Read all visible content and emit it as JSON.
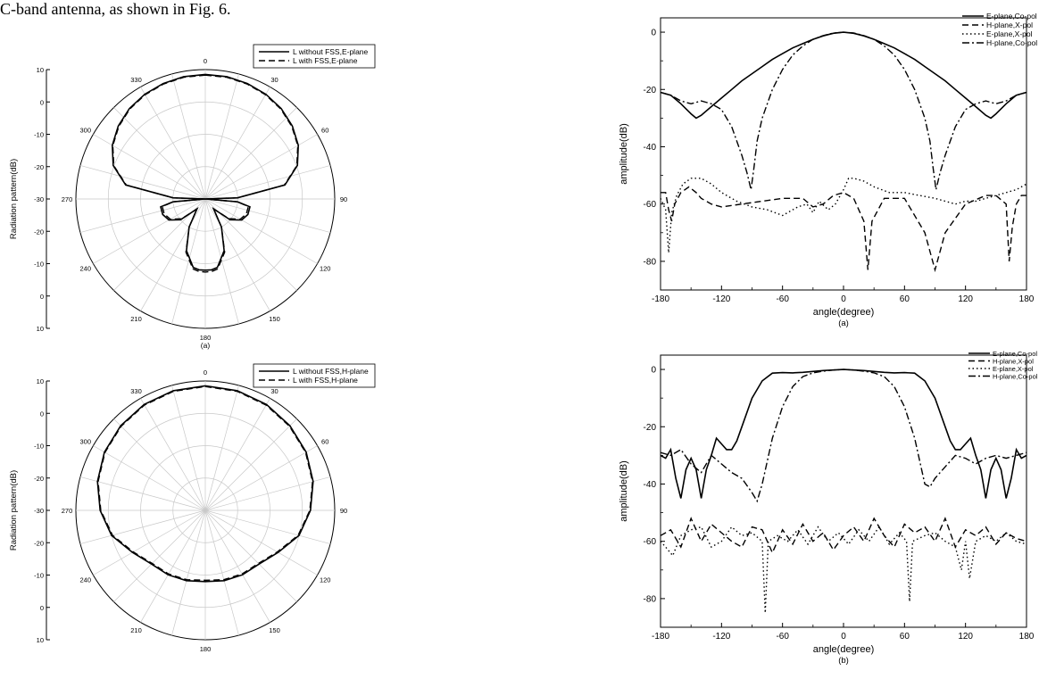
{
  "intro_text": "C-band antenna, as shown in Fig. 6.",
  "chart_data": [
    {
      "type": "polar",
      "panel": "(a)",
      "ylabel": "Radiation pattern(dB)",
      "angle_ticks": [
        "0",
        "30",
        "60",
        "90",
        "120",
        "150",
        "180",
        "210",
        "240",
        "270",
        "300",
        "330"
      ],
      "radial_ticks": [
        "10",
        "0",
        "-10",
        "-20",
        "-30",
        "-20",
        "-10",
        "0",
        "10"
      ],
      "radial_range": [
        -30,
        10
      ],
      "legend_position": "top-right",
      "series": [
        {
          "name": "L without FSS,E-plane",
          "style": "solid",
          "angles": [
            0,
            10,
            20,
            30,
            40,
            50,
            60,
            70,
            80,
            88,
            90,
            95,
            100,
            110,
            120,
            130,
            140,
            150,
            160,
            170,
            175,
            180,
            185,
            190,
            200,
            210,
            220,
            230,
            240,
            250,
            260,
            265,
            270,
            272,
            280,
            290,
            300,
            310,
            320,
            330,
            340,
            350,
            360
          ],
          "values": [
            8.5,
            8.4,
            8,
            7.4,
            6.5,
            5.1,
            3.2,
            0.3,
            -5,
            -20,
            -30,
            -20,
            -16,
            -16,
            -17,
            -20,
            -26,
            -20,
            -13,
            -8.5,
            -8,
            -8,
            -8,
            -8.5,
            -13,
            -20,
            -26,
            -20,
            -17,
            -16,
            -16,
            -20,
            -30,
            -20,
            -5,
            0.3,
            3.2,
            5.1,
            6.5,
            7.4,
            8,
            8.4,
            8.5
          ]
        },
        {
          "name": "L with FSS,E-plane",
          "style": "dashed",
          "angles": [
            0,
            10,
            20,
            30,
            40,
            50,
            60,
            70,
            80,
            88,
            90,
            95,
            100,
            110,
            120,
            130,
            140,
            150,
            160,
            170,
            175,
            180,
            185,
            190,
            200,
            210,
            220,
            230,
            240,
            250,
            260,
            265,
            270,
            272,
            280,
            290,
            300,
            310,
            320,
            330,
            340,
            350,
            360
          ],
          "values": [
            8.3,
            8.2,
            7.8,
            7.2,
            6.3,
            4.9,
            3,
            0.1,
            -5.2,
            -20,
            -30,
            -20,
            -16.5,
            -16.5,
            -17.5,
            -20.5,
            -26,
            -20,
            -12.5,
            -8,
            -7.5,
            -7.4,
            -7.5,
            -8,
            -12.5,
            -20,
            -26,
            -20.5,
            -17.5,
            -16.5,
            -16.5,
            -20,
            -30,
            -20,
            -5.2,
            0.1,
            3,
            4.9,
            6.3,
            7.2,
            7.8,
            8.2,
            8.3
          ]
        }
      ]
    },
    {
      "type": "polar",
      "panel": "",
      "ylabel": "Radiation pattern(dB)",
      "angle_ticks": [
        "0",
        "30",
        "60",
        "90",
        "120",
        "150",
        "180",
        "210",
        "240",
        "270",
        "300",
        "330"
      ],
      "radial_ticks": [
        "10",
        "0",
        "-10",
        "-20",
        "-30",
        "-20",
        "-10",
        "0",
        "10"
      ],
      "radial_range": [
        -30,
        10
      ],
      "legend_position": "top-right",
      "series": [
        {
          "name": "L without FSS,H-plane",
          "style": "solid",
          "angles": [
            0,
            15,
            30,
            45,
            60,
            75,
            90,
            105,
            120,
            135,
            150,
            165,
            180,
            195,
            210,
            225,
            240,
            255,
            270,
            285,
            300,
            315,
            330,
            345,
            360
          ],
          "values": [
            8.5,
            8.3,
            7.8,
            7,
            6,
            4.5,
            2.5,
            0,
            -4,
            -6.5,
            -7,
            -7.5,
            -8,
            -7.5,
            -7,
            -6.5,
            -4,
            0,
            2.5,
            4.5,
            6,
            7,
            7.8,
            8.3,
            8.5
          ]
        },
        {
          "name": "L with FSS,H-plane",
          "style": "dashed",
          "angles": [
            0,
            15,
            30,
            45,
            60,
            75,
            90,
            105,
            120,
            135,
            150,
            165,
            180,
            195,
            210,
            225,
            240,
            255,
            270,
            285,
            300,
            315,
            330,
            345,
            360
          ],
          "values": [
            8.3,
            8.1,
            7.6,
            6.8,
            5.8,
            4.3,
            2.3,
            -0.3,
            -4.3,
            -6.8,
            -7.3,
            -7.8,
            -8.4,
            -7.8,
            -7.3,
            -6.8,
            -4.3,
            -0.3,
            2.3,
            4.3,
            5.8,
            6.8,
            7.6,
            8.1,
            8.3
          ]
        }
      ]
    },
    {
      "type": "line",
      "panel": "(a)",
      "xlabel": "angle(degree)",
      "ylabel": "amplitude(dB)",
      "xlim": [
        -180,
        180
      ],
      "ylim": [
        -90,
        5
      ],
      "xticks": [
        -180,
        -120,
        -60,
        0,
        60,
        120,
        180
      ],
      "yticks": [
        0,
        -20,
        -40,
        -60,
        -80
      ],
      "legend_position": "top-right",
      "series": [
        {
          "name": "E-plane,Co-pol",
          "style": "solid",
          "x": [
            -180,
            -170,
            -160,
            -150,
            -145,
            -140,
            -130,
            -120,
            -110,
            -100,
            -90,
            -80,
            -70,
            -60,
            -50,
            -40,
            -30,
            -20,
            -10,
            0,
            10,
            20,
            30,
            40,
            50,
            60,
            70,
            80,
            90,
            100,
            110,
            120,
            130,
            140,
            145,
            150,
            160,
            170,
            180
          ],
          "y": [
            -21,
            -22,
            -25,
            -28.5,
            -30,
            -29,
            -26,
            -23,
            -20,
            -17,
            -14.5,
            -12,
            -9.5,
            -7.5,
            -5.5,
            -4,
            -2.5,
            -1.3,
            -0.4,
            0,
            -0.4,
            -1.3,
            -2.5,
            -4,
            -5.5,
            -7.5,
            -9.5,
            -12,
            -14.5,
            -17,
            -20,
            -23,
            -26,
            -29,
            -30,
            -28.5,
            -25,
            -22,
            -21
          ]
        },
        {
          "name": "H-plane,X-pol",
          "style": "dashed",
          "x": [
            -180,
            -175,
            -172,
            -169,
            -166,
            -160,
            -152,
            -145,
            -140,
            -130,
            -120,
            -100,
            -80,
            -60,
            -40,
            -30,
            -20,
            -10,
            0,
            10,
            20,
            24,
            28,
            40,
            60,
            80,
            90,
            100,
            120,
            140,
            150,
            160,
            163,
            166,
            170,
            175,
            180
          ],
          "y": [
            -56,
            -56,
            -62,
            -66,
            -60,
            -56,
            -54,
            -56,
            -58,
            -60,
            -61,
            -60,
            -59,
            -58,
            -58,
            -61,
            -60,
            -57,
            -56,
            -58,
            -66,
            -83,
            -66,
            -58,
            -58,
            -70,
            -83,
            -70,
            -60,
            -57,
            -57,
            -60,
            -80,
            -68,
            -60,
            -57,
            -57
          ]
        },
        {
          "name": "E-plane,X-pol",
          "style": "dotted",
          "x": [
            -180,
            -175,
            -172,
            -169,
            -164,
            -158,
            -150,
            -140,
            -130,
            -120,
            -105,
            -90,
            -75,
            -60,
            -45,
            -36,
            -30,
            -24,
            -15,
            -8,
            0,
            5,
            10,
            20,
            30,
            45,
            60,
            75,
            90,
            100,
            110,
            120,
            130,
            140,
            150,
            160,
            170,
            180
          ],
          "y": [
            -58,
            -62,
            -77,
            -63,
            -57,
            -53,
            -51,
            -51,
            -53,
            -56,
            -59,
            -61,
            -62,
            -64,
            -61,
            -60,
            -63,
            -59,
            -62,
            -60,
            -55,
            -51,
            -51,
            -52,
            -54,
            -56,
            -56,
            -57,
            -58,
            -59,
            -60,
            -59,
            -59,
            -58,
            -57,
            -56,
            -55,
            -53
          ]
        },
        {
          "name": "H-plane,Co-pol",
          "style": "dash-dot",
          "x": [
            -180,
            -170,
            -160,
            -150,
            -140,
            -130,
            -120,
            -110,
            -100,
            -95,
            -91,
            -88,
            -85,
            -80,
            -70,
            -60,
            -50,
            -40,
            -30,
            -20,
            -10,
            0,
            10,
            20,
            30,
            40,
            50,
            60,
            70,
            80,
            85,
            88,
            91,
            95,
            100,
            110,
            120,
            130,
            140,
            150,
            160,
            170,
            180
          ],
          "y": [
            -21,
            -22,
            -24,
            -25,
            -24,
            -25,
            -27,
            -33,
            -43,
            -49,
            -55,
            -47,
            -38,
            -30,
            -20,
            -13,
            -8,
            -4.8,
            -2.5,
            -1.2,
            -0.3,
            0,
            -0.3,
            -1.2,
            -2.5,
            -4.8,
            -8,
            -13,
            -20,
            -30,
            -38,
            -47,
            -55,
            -49,
            -43,
            -33,
            -27,
            -25,
            -24,
            -25,
            -24,
            -22,
            -21
          ]
        }
      ]
    },
    {
      "type": "line",
      "panel": "(b)",
      "xlabel": "angle(degree)",
      "ylabel": "amplitude(dB)",
      "xlim": [
        -180,
        180
      ],
      "ylim": [
        -90,
        5
      ],
      "xticks": [
        -180,
        -120,
        -60,
        0,
        60,
        120,
        180
      ],
      "yticks": [
        0,
        -20,
        -40,
        -60,
        -80
      ],
      "legend_position": "top-right",
      "series": [
        {
          "name": "E-plane,Co-pol",
          "style": "solid",
          "x": [
            -180,
            -175,
            -170,
            -165,
            -160,
            -155,
            -150,
            -145,
            -140,
            -135,
            -130,
            -125,
            -120,
            -115,
            -110,
            -105,
            -100,
            -90,
            -80,
            -70,
            -60,
            -50,
            -40,
            -30,
            -20,
            -10,
            0,
            10,
            20,
            30,
            40,
            50,
            60,
            70,
            80,
            90,
            100,
            105,
            110,
            115,
            120,
            125,
            130,
            135,
            140,
            145,
            150,
            155,
            160,
            165,
            170,
            175,
            180
          ],
          "y": [
            -30,
            -31,
            -28,
            -38,
            -45,
            -35,
            -31,
            -35,
            -45,
            -35,
            -30,
            -24,
            -26,
            -28,
            -28,
            -25,
            -20,
            -10,
            -4,
            -1.3,
            -1.1,
            -1.2,
            -1,
            -0.7,
            -0.4,
            -0.2,
            0,
            -0.2,
            -0.4,
            -0.7,
            -1,
            -1.2,
            -1.1,
            -1.3,
            -4,
            -10,
            -20,
            -25,
            -28,
            -28,
            -26,
            -24,
            -30,
            -35,
            -45,
            -35,
            -31,
            -35,
            -45,
            -38,
            -28,
            -31,
            -30
          ]
        },
        {
          "name": "H-plane,X-pol",
          "style": "dashed",
          "x": [
            -180,
            -170,
            -160,
            -150,
            -140,
            -130,
            -120,
            -110,
            -100,
            -90,
            -80,
            -70,
            -60,
            -50,
            -40,
            -30,
            -20,
            -10,
            0,
            10,
            20,
            30,
            40,
            50,
            60,
            70,
            80,
            90,
            100,
            110,
            120,
            130,
            140,
            150,
            160,
            170,
            180
          ],
          "y": [
            -58,
            -56,
            -62,
            -52,
            -60,
            -54,
            -57,
            -60,
            -62,
            -55,
            -56,
            -64,
            -56,
            -61,
            -54,
            -60,
            -57,
            -63,
            -58,
            -55,
            -60,
            -52,
            -58,
            -62,
            -54,
            -57,
            -55,
            -60,
            -52,
            -62,
            -56,
            -58,
            -55,
            -61,
            -57,
            -59,
            -60
          ]
        },
        {
          "name": "E-plane,X-pol",
          "style": "dotted",
          "x": [
            -180,
            -175,
            -168,
            -160,
            -150,
            -140,
            -130,
            -120,
            -110,
            -100,
            -90,
            -80,
            -77,
            -74,
            -65,
            -55,
            -45,
            -35,
            -25,
            -15,
            -5,
            5,
            15,
            25,
            35,
            45,
            55,
            62,
            65,
            68,
            80,
            90,
            100,
            110,
            116,
            120,
            124,
            130,
            140,
            150,
            160,
            170,
            180
          ],
          "y": [
            -60,
            -62,
            -65,
            -58,
            -56,
            -55,
            -62,
            -60,
            -55,
            -58,
            -57,
            -60,
            -85,
            -60,
            -58,
            -60,
            -56,
            -61,
            -55,
            -60,
            -57,
            -61,
            -56,
            -60,
            -55,
            -61,
            -57,
            -60,
            -81,
            -60,
            -58,
            -57,
            -60,
            -62,
            -70,
            -60,
            -73,
            -60,
            -58,
            -60,
            -57,
            -60,
            -61
          ]
        },
        {
          "name": "H-plane,Co-pol",
          "style": "dash-dot",
          "x": [
            -180,
            -170,
            -160,
            -150,
            -140,
            -130,
            -120,
            -110,
            -100,
            -90,
            -85,
            -80,
            -75,
            -70,
            -60,
            -50,
            -40,
            -30,
            -20,
            -10,
            0,
            10,
            20,
            30,
            40,
            50,
            60,
            70,
            75,
            80,
            85,
            90,
            100,
            110,
            120,
            130,
            140,
            150,
            160,
            170,
            180
          ],
          "y": [
            -29,
            -30,
            -28,
            -33,
            -36,
            -30,
            -33,
            -36,
            -38,
            -43,
            -46,
            -40,
            -32,
            -24,
            -13,
            -6,
            -2.5,
            -1.2,
            -0.6,
            -0.2,
            0,
            -0.2,
            -0.6,
            -1.2,
            -2.5,
            -6,
            -13,
            -24,
            -32,
            -40,
            -41,
            -38,
            -34,
            -30,
            -31,
            -33,
            -31,
            -30,
            -31,
            -30,
            -29
          ]
        }
      ]
    }
  ]
}
